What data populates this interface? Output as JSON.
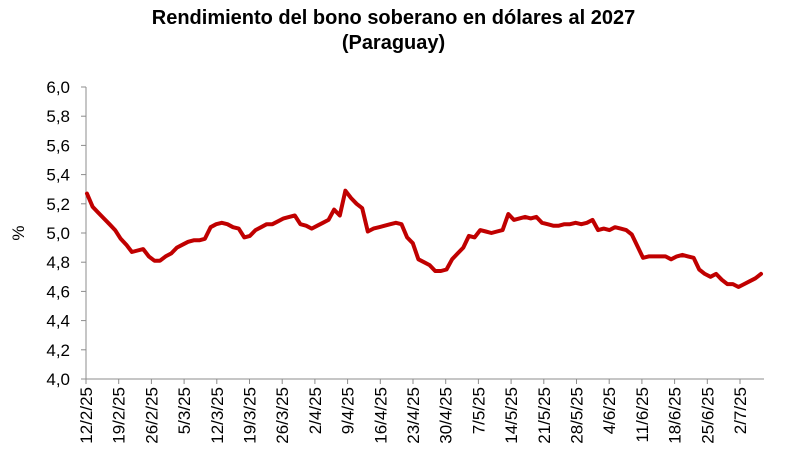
{
  "chart_data": {
    "type": "line",
    "title": "Rendimiento del bono soberano en dólares al 2027",
    "subtitle": "(Paraguay)",
    "xlabel": "",
    "ylabel": "%",
    "ylim": [
      4.0,
      6.0
    ],
    "yticks": [
      "4,0",
      "4,2",
      "4,4",
      "4,6",
      "4,8",
      "5,0",
      "5,2",
      "5,4",
      "5,6",
      "5,8",
      "6,0"
    ],
    "xticks": [
      "12/2/25",
      "19/2/25",
      "26/2/25",
      "5/3/25",
      "12/3/25",
      "19/3/25",
      "26/3/25",
      "2/4/25",
      "9/4/25",
      "16/4/25",
      "23/4/25",
      "30/4/25",
      "7/5/25",
      "14/5/25",
      "21/5/25",
      "28/5/25",
      "4/6/25",
      "11/6/25",
      "18/6/25",
      "25/6/25",
      "2/7/25"
    ],
    "grid": false,
    "color": "#C00000",
    "series": [
      {
        "values": [
          5.27,
          5.18,
          5.14,
          5.1,
          5.06,
          5.02,
          4.96,
          4.92,
          4.87,
          4.88,
          4.89,
          4.84,
          4.81,
          4.81,
          4.84,
          4.86,
          4.9,
          4.92,
          4.94,
          4.95,
          4.95,
          4.96,
          5.04,
          5.06,
          5.07,
          5.06,
          5.04,
          5.03,
          4.97,
          4.98,
          5.02,
          5.04,
          5.06,
          5.06,
          5.08,
          5.1,
          5.11,
          5.12,
          5.06,
          5.05,
          5.03,
          5.05,
          5.07,
          5.09,
          5.16,
          5.12,
          5.29,
          5.24,
          5.2,
          5.17,
          5.01,
          5.03,
          5.04,
          5.05,
          5.06,
          5.07,
          5.06,
          4.97,
          4.93,
          4.82,
          4.8,
          4.78,
          4.74,
          4.74,
          4.75,
          4.82,
          4.86,
          4.9,
          4.98,
          4.97,
          5.02,
          5.01,
          5.0,
          5.01,
          5.02,
          5.13,
          5.09,
          5.1,
          5.11,
          5.1,
          5.11,
          5.07,
          5.06,
          5.05,
          5.05,
          5.06,
          5.06,
          5.07,
          5.06,
          5.07,
          5.09,
          5.02,
          5.03,
          5.02,
          5.04,
          5.03,
          5.02,
          4.99,
          4.91,
          4.83,
          4.84,
          4.84,
          4.84,
          4.84,
          4.82,
          4.84,
          4.85,
          4.84,
          4.83,
          4.75,
          4.72,
          4.7,
          4.72,
          4.68,
          4.65,
          4.65,
          4.63,
          4.65,
          4.67,
          4.69,
          4.72
        ]
      }
    ]
  }
}
